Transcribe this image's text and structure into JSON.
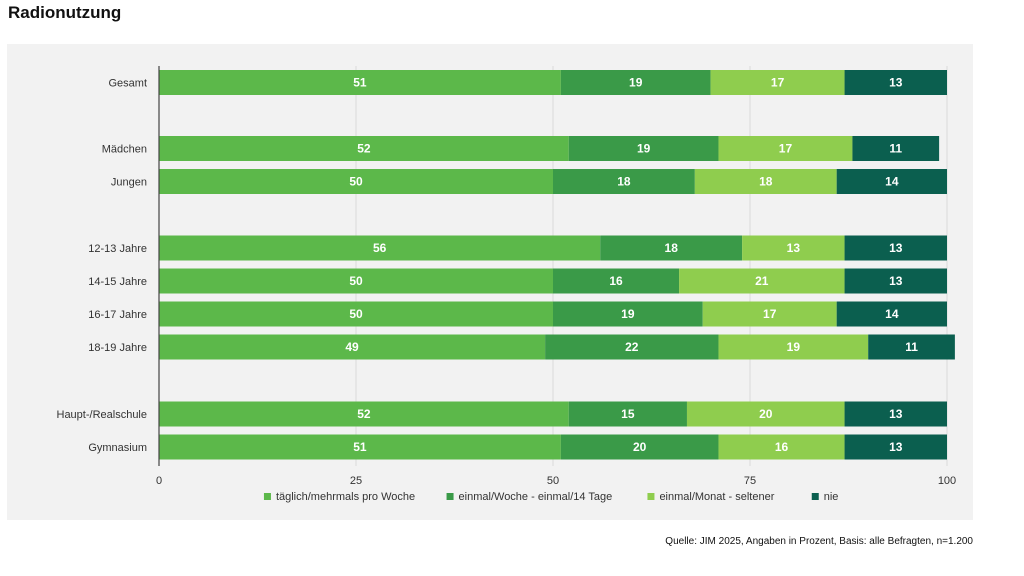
{
  "page": {
    "title": "Radionutzung",
    "source": "Quelle: JIM 2025, Angaben in Prozent, Basis: alle Befragten, n=1.200"
  },
  "chart_data": {
    "type": "bar",
    "orientation": "horizontal",
    "stacked": true,
    "title": "Radionutzung",
    "categories": [
      "Gesamt",
      "Mädchen",
      "Jungen",
      "12-13 Jahre",
      "14-15 Jahre",
      "16-17 Jahre",
      "18-19 Jahre",
      "Haupt-/Realschule",
      "Gymnasium"
    ],
    "groups": [
      [
        0
      ],
      [
        1,
        2
      ],
      [
        3,
        4,
        5,
        6
      ],
      [
        7,
        8
      ]
    ],
    "series": [
      {
        "name": "täglich/mehrmals pro Woche",
        "color": "#5cb84a",
        "values": [
          51,
          52,
          50,
          56,
          50,
          50,
          49,
          52,
          51
        ]
      },
      {
        "name": "einmal/Woche - einmal/14 Tage",
        "color": "#3a9a48",
        "values": [
          19,
          19,
          18,
          18,
          16,
          19,
          22,
          15,
          20
        ]
      },
      {
        "name": "einmal/Monat - seltener",
        "color": "#8fcd4e",
        "values": [
          17,
          17,
          18,
          13,
          21,
          17,
          19,
          20,
          16
        ]
      },
      {
        "name": "nie",
        "color": "#0b5f4f",
        "values": [
          13,
          11,
          14,
          13,
          13,
          14,
          11,
          13,
          13
        ]
      }
    ],
    "xlim": [
      0,
      100
    ],
    "xticks": [
      0,
      25,
      50,
      75,
      100
    ],
    "grid": true,
    "legend": "bottom-center",
    "xlabel": "",
    "ylabel": ""
  }
}
